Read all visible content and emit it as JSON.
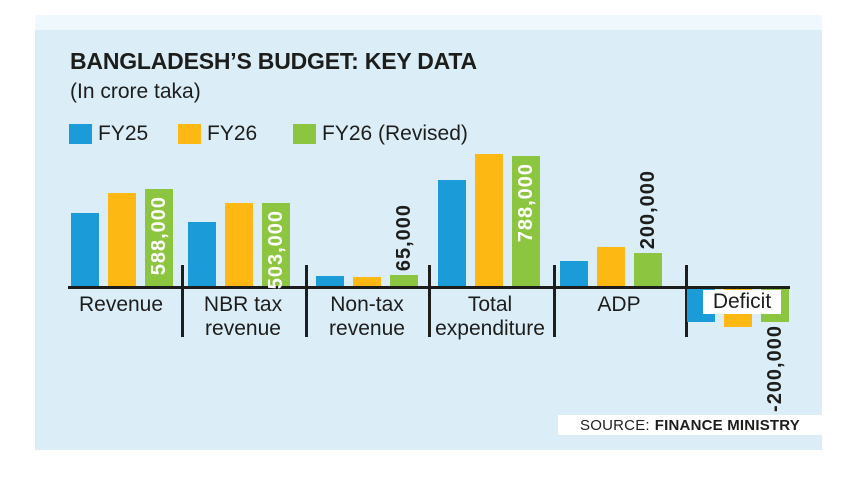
{
  "title": "BANGLADESH’S BUDGET: KEY DATA",
  "subtitle": "(In crore taka)",
  "legend": [
    {
      "label": "FY25",
      "color": "#1b9cd8"
    },
    {
      "label": "FY26",
      "color": "#fdb813"
    },
    {
      "label": "FY26 (Revised)",
      "color": "#8cc540"
    }
  ],
  "source": {
    "prefix": "SOURCE:",
    "name": "FINANCE MINISTRY"
  },
  "colors": {
    "panel_bg": "#dbeef8",
    "panel_top_strip": "#eff8fc",
    "fy25_blue": "#1b9cd8",
    "fy26_orange": "#fdb813",
    "fy26_revised_green": "#8cc540",
    "axis_text": "#1d1d1b",
    "in_bar_label": "#ffffff"
  },
  "chart_data": {
    "type": "bar",
    "unit": "crore taka",
    "title": "BANGLADESH’S BUDGET: KEY DATA",
    "subtitle": "(In crore taka)",
    "legend_position": "top",
    "grid": false,
    "value_axis_visible": false,
    "approx_value_range": [
      -230000,
      800000
    ],
    "categories": [
      "Revenue",
      "NBR tax revenue",
      "Non-tax revenue",
      "Total expenditure",
      "ADP",
      "Deficit"
    ],
    "category_lines": [
      [
        "Revenue"
      ],
      [
        "NBR tax",
        "revenue"
      ],
      [
        "Non-tax",
        "revenue"
      ],
      [
        "Total",
        "expenditure"
      ],
      [
        "ADP"
      ],
      [
        "Deficit"
      ]
    ],
    "series": [
      {
        "name": "FY25",
        "color": "#1b9cd8",
        "values": [
          440000,
          385000,
          60000,
          640000,
          150000,
          -200000
        ],
        "estimated": true
      },
      {
        "name": "FY26",
        "color": "#fdb813",
        "values": [
          565000,
          505000,
          55000,
          800000,
          235000,
          -230000
        ],
        "estimated": true
      },
      {
        "name": "FY26 (Revised)",
        "color": "#8cc540",
        "values": [
          588000,
          503000,
          65000,
          788000,
          200000,
          -200000
        ],
        "value_labels": [
          "588,000",
          "503,000",
          "65,000",
          "788,000",
          "200,000",
          "-200,000"
        ]
      }
    ]
  }
}
